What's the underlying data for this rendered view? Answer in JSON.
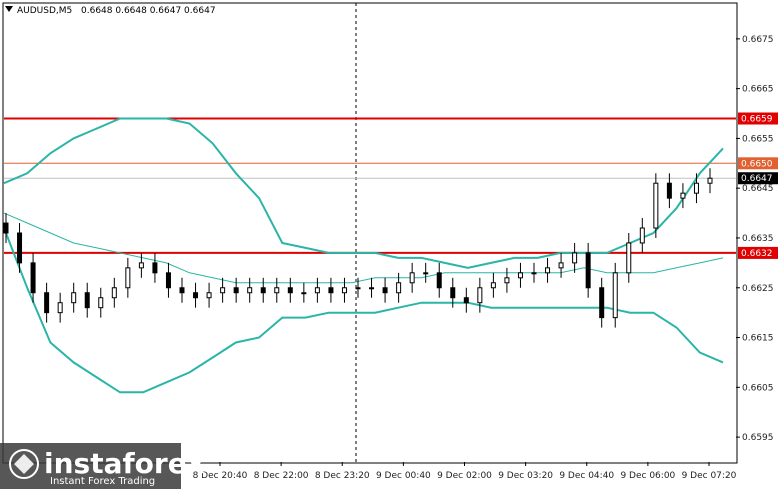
{
  "header": {
    "symbol": "AUDUSD,M5",
    "ohlc": "0.6648 0.6648 0.6647 0.6647"
  },
  "chart_data": {
    "type": "candlestick",
    "ylim": [
      0.659,
      0.6682
    ],
    "y_ticks": [
      "0.6675",
      "0.6665",
      "0.6655",
      "0.6645",
      "0.6635",
      "0.6625",
      "0.6615",
      "0.6605",
      "0.6595"
    ],
    "x_tick_labels": [
      "8 Dec 20:40",
      "8 Dec 22:00",
      "8 Dec 23:20",
      "9 Dec 00:40",
      "9 Dec 02:00",
      "9 Dec 03:20",
      "9 Dec 04:40",
      "9 Dec 06:00",
      "9 Dec 07:20"
    ],
    "levels": [
      {
        "price": "0.6659",
        "color": "#e00000"
      },
      {
        "price": "0.6650",
        "color": "#e06030"
      },
      {
        "price": "0.6647",
        "color": "#000000"
      },
      {
        "price": "0.6632",
        "color": "#e00000"
      }
    ],
    "series_colors": {
      "bands": "#2ab5a8",
      "middle": "#2ab5a8",
      "candles": "#000000"
    },
    "bb_upper": [
      0.6646,
      0.6648,
      0.6652,
      0.6655,
      0.6657,
      0.6659,
      0.6659,
      0.6659,
      0.6658,
      0.6654,
      0.6648,
      0.6643,
      0.6634,
      0.6633,
      0.6632,
      0.6632,
      0.6632,
      0.6631,
      0.6631,
      0.663,
      0.6629,
      0.663,
      0.6631,
      0.6631,
      0.6632,
      0.6632,
      0.6632,
      0.6634,
      0.6636,
      0.6641,
      0.6648,
      0.6653
    ],
    "bb_middle": [
      0.664,
      0.6638,
      0.6636,
      0.6634,
      0.6633,
      0.6632,
      0.6631,
      0.663,
      0.6628,
      0.6627,
      0.6626,
      0.6626,
      0.6626,
      0.6626,
      0.6626,
      0.6626,
      0.6627,
      0.6627,
      0.6627,
      0.6628,
      0.6628,
      0.6628,
      0.6628,
      0.6628,
      0.6628,
      0.6629,
      0.6628,
      0.6628,
      0.6628,
      0.6629,
      0.663,
      0.6631
    ],
    "bb_lower": [
      0.6637,
      0.6625,
      0.6614,
      0.661,
      0.6607,
      0.6604,
      0.6604,
      0.6606,
      0.6608,
      0.6611,
      0.6614,
      0.6615,
      0.6619,
      0.6619,
      0.662,
      0.662,
      0.662,
      0.6621,
      0.6622,
      0.6622,
      0.6622,
      0.6621,
      0.6621,
      0.6621,
      0.6621,
      0.6621,
      0.6621,
      0.662,
      0.662,
      0.6617,
      0.6612,
      0.661
    ],
    "candles_close": [
      0.6636,
      0.663,
      0.6624,
      0.662,
      0.6622,
      0.6624,
      0.6621,
      0.6623,
      0.6625,
      0.6629,
      0.663,
      0.6628,
      0.6625,
      0.6624,
      0.6623,
      0.6624,
      0.6625,
      0.6624,
      0.6625,
      0.6624,
      0.6625,
      0.6624,
      0.6624,
      0.6625,
      0.6624,
      0.6625,
      0.6625,
      0.6625,
      0.6624,
      0.6626,
      0.6628,
      0.6628,
      0.6625,
      0.6623,
      0.6622,
      0.6625,
      0.6626,
      0.6627,
      0.6628,
      0.6628,
      0.6629,
      0.663,
      0.6632,
      0.6625,
      0.6619,
      0.6628,
      0.6634,
      0.6637,
      0.6646,
      0.6643,
      0.6644,
      0.6646,
      0.6647
    ]
  },
  "watermark": {
    "brand": "instaforex",
    "tagline": "Instant Forex Trading"
  }
}
